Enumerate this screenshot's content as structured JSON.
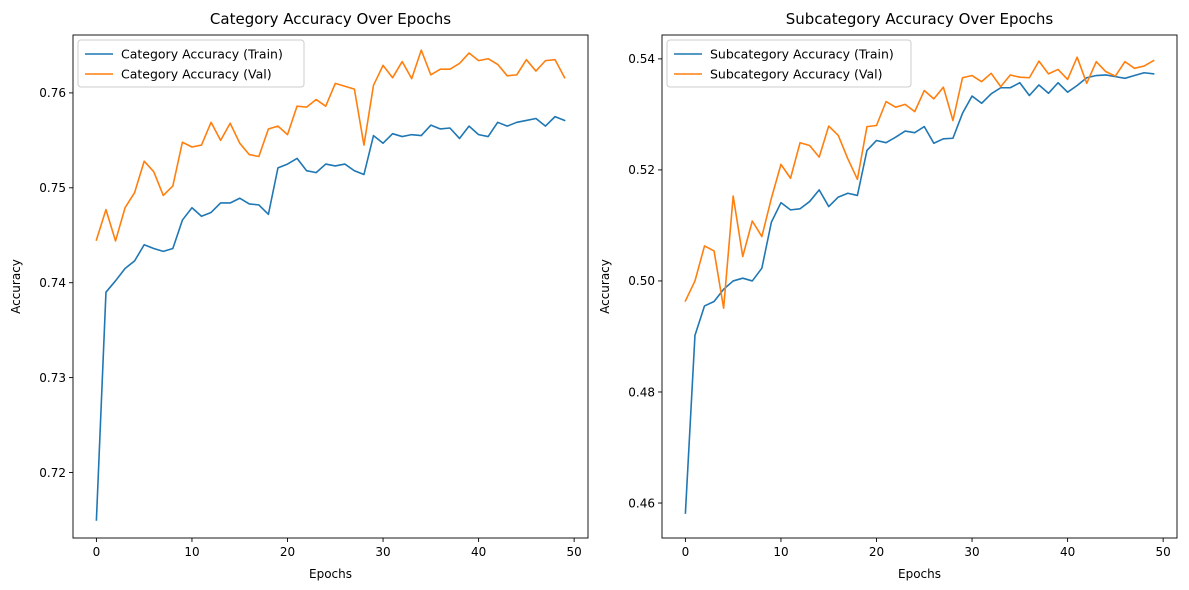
{
  "colors": {
    "train": "#1f77b4",
    "val": "#ff7f0e",
    "axes": "#000000",
    "legend_border": "#cccccc",
    "background": "#ffffff"
  },
  "chart_data": [
    {
      "type": "line",
      "title": "Category Accuracy Over Epochs",
      "xlabel": "Epochs",
      "ylabel": "Accuracy",
      "xlim": [
        -2.45,
        51.45
      ],
      "ylim": [
        0.7131,
        0.7661
      ],
      "xticks": [
        0,
        10,
        20,
        30,
        40,
        50
      ],
      "xtick_labels": [
        "0",
        "10",
        "20",
        "30",
        "40",
        "50"
      ],
      "yticks": [
        0.72,
        0.73,
        0.74,
        0.75,
        0.76
      ],
      "ytick_labels": [
        "0.72",
        "0.73",
        "0.74",
        "0.75",
        "0.76"
      ],
      "grid": false,
      "legend_position": "upper-left",
      "x": [
        0,
        1,
        2,
        3,
        4,
        5,
        6,
        7,
        8,
        9,
        10,
        11,
        12,
        13,
        14,
        15,
        16,
        17,
        18,
        19,
        20,
        21,
        22,
        23,
        24,
        25,
        26,
        27,
        28,
        29,
        30,
        31,
        32,
        33,
        34,
        35,
        36,
        37,
        38,
        39,
        40,
        41,
        42,
        43,
        44,
        45,
        46,
        47,
        48,
        49
      ],
      "series": [
        {
          "name": "Category Accuracy (Train)",
          "color": "#1f77b4",
          "values": [
            0.715,
            0.739,
            0.7402,
            0.7415,
            0.7423,
            0.744,
            0.7436,
            0.7433,
            0.7436,
            0.7466,
            0.7479,
            0.747,
            0.7474,
            0.7484,
            0.7484,
            0.7489,
            0.7483,
            0.7482,
            0.7472,
            0.7521,
            0.7525,
            0.7531,
            0.7518,
            0.7516,
            0.7525,
            0.7523,
            0.7525,
            0.7518,
            0.7514,
            0.7555,
            0.7547,
            0.7557,
            0.7554,
            0.7556,
            0.7555,
            0.7566,
            0.7562,
            0.7563,
            0.7552,
            0.7565,
            0.7556,
            0.7554,
            0.7569,
            0.7565,
            0.7569,
            0.7571,
            0.7573,
            0.7565,
            0.7575,
            0.7571
          ]
        },
        {
          "name": "Category Accuracy (Val)",
          "color": "#ff7f0e",
          "values": [
            0.7445,
            0.7477,
            0.7444,
            0.7479,
            0.7495,
            0.7528,
            0.7517,
            0.7492,
            0.7502,
            0.7548,
            0.7543,
            0.7545,
            0.7569,
            0.755,
            0.7568,
            0.7547,
            0.7535,
            0.7533,
            0.7562,
            0.7565,
            0.7556,
            0.7586,
            0.7585,
            0.7593,
            0.7586,
            0.761,
            0.7607,
            0.7604,
            0.7545,
            0.7608,
            0.7629,
            0.7616,
            0.7633,
            0.7615,
            0.7645,
            0.7619,
            0.7625,
            0.7625,
            0.7631,
            0.7642,
            0.7634,
            0.7636,
            0.763,
            0.7618,
            0.7619,
            0.7635,
            0.7623,
            0.7634,
            0.7635,
            0.7616
          ]
        }
      ]
    },
    {
      "type": "line",
      "title": "Subcategory Accuracy Over Epochs",
      "xlabel": "Epochs",
      "ylabel": "Accuracy",
      "xlim": [
        -2.45,
        51.45
      ],
      "ylim": [
        0.4537,
        0.5443
      ],
      "xticks": [
        0,
        10,
        20,
        30,
        40,
        50
      ],
      "xtick_labels": [
        "0",
        "10",
        "20",
        "30",
        "40",
        "50"
      ],
      "yticks": [
        0.46,
        0.48,
        0.5,
        0.52,
        0.54
      ],
      "ytick_labels": [
        "0.46",
        "0.48",
        "0.50",
        "0.52",
        "0.54"
      ],
      "grid": false,
      "legend_position": "upper-left",
      "x": [
        0,
        1,
        2,
        3,
        4,
        5,
        6,
        7,
        8,
        9,
        10,
        11,
        12,
        13,
        14,
        15,
        16,
        17,
        18,
        19,
        20,
        21,
        22,
        23,
        24,
        25,
        26,
        27,
        28,
        29,
        30,
        31,
        32,
        33,
        34,
        35,
        36,
        37,
        38,
        39,
        40,
        41,
        42,
        43,
        44,
        45,
        46,
        47,
        48,
        49
      ],
      "series": [
        {
          "name": "Subcategory Accuracy (Train)",
          "color": "#1f77b4",
          "values": [
            0.4582,
            0.4902,
            0.4955,
            0.4963,
            0.4985,
            0.5,
            0.5005,
            0.5,
            0.5023,
            0.5106,
            0.5141,
            0.5128,
            0.513,
            0.5143,
            0.5164,
            0.5134,
            0.5151,
            0.5158,
            0.5154,
            0.5235,
            0.5253,
            0.5249,
            0.5259,
            0.527,
            0.5267,
            0.5278,
            0.5248,
            0.5256,
            0.5257,
            0.5302,
            0.5333,
            0.532,
            0.5337,
            0.5348,
            0.5348,
            0.5357,
            0.5334,
            0.5353,
            0.5338,
            0.5357,
            0.534,
            0.5352,
            0.5366,
            0.537,
            0.5371,
            0.5368,
            0.5365,
            0.537,
            0.5375,
            0.5373
          ]
        },
        {
          "name": "Subcategory Accuracy (Val)",
          "color": "#ff7f0e",
          "values": [
            0.4964,
            0.5,
            0.5063,
            0.5054,
            0.4951,
            0.5153,
            0.5044,
            0.5108,
            0.508,
            0.5149,
            0.521,
            0.5185,
            0.5249,
            0.5244,
            0.5223,
            0.5279,
            0.5262,
            0.522,
            0.5183,
            0.5278,
            0.528,
            0.5323,
            0.5313,
            0.5318,
            0.5305,
            0.5343,
            0.5328,
            0.5349,
            0.5289,
            0.5366,
            0.537,
            0.5359,
            0.5374,
            0.535,
            0.5371,
            0.5367,
            0.5366,
            0.5396,
            0.5373,
            0.5381,
            0.5363,
            0.5403,
            0.5356,
            0.5395,
            0.5377,
            0.5369,
            0.5395,
            0.5383,
            0.5387,
            0.5397
          ]
        }
      ]
    }
  ]
}
